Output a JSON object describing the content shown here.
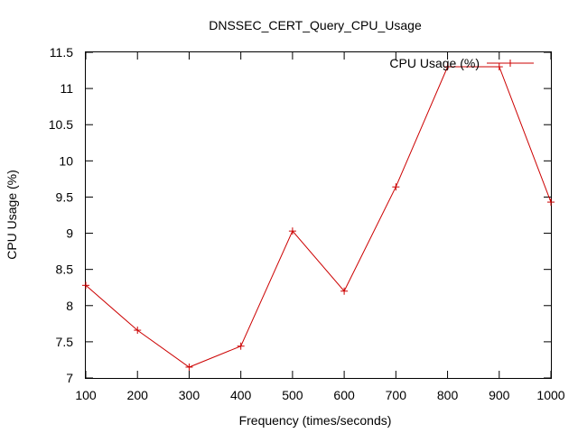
{
  "chart_data": {
    "type": "line",
    "title": "DNSSEC_CERT_Query_CPU_Usage",
    "xlabel": "Frequency (times/seconds)",
    "ylabel": "CPU Usage (%)",
    "xlim": [
      100,
      1000
    ],
    "ylim": [
      7,
      11.5
    ],
    "x_ticks": [
      100,
      200,
      300,
      400,
      500,
      600,
      700,
      800,
      900,
      1000
    ],
    "y_ticks": [
      7,
      7.5,
      8,
      8.5,
      9,
      9.5,
      10,
      10.5,
      11,
      11.5
    ],
    "y_tick_labels": [
      "7",
      "7.5",
      "8",
      "8.5",
      "9",
      "9.5",
      "10",
      "10.5",
      "11",
      "11.5"
    ],
    "grid": false,
    "legend_position": "top-right",
    "marker": "+",
    "series": [
      {
        "name": "CPU Usage (%)",
        "color": "#cc0000",
        "x": [
          100,
          200,
          300,
          400,
          500,
          600,
          700,
          800,
          900,
          1000
        ],
        "values": [
          8.28,
          7.66,
          7.15,
          7.44,
          9.03,
          8.2,
          9.64,
          11.3,
          11.3,
          9.43
        ]
      }
    ]
  }
}
